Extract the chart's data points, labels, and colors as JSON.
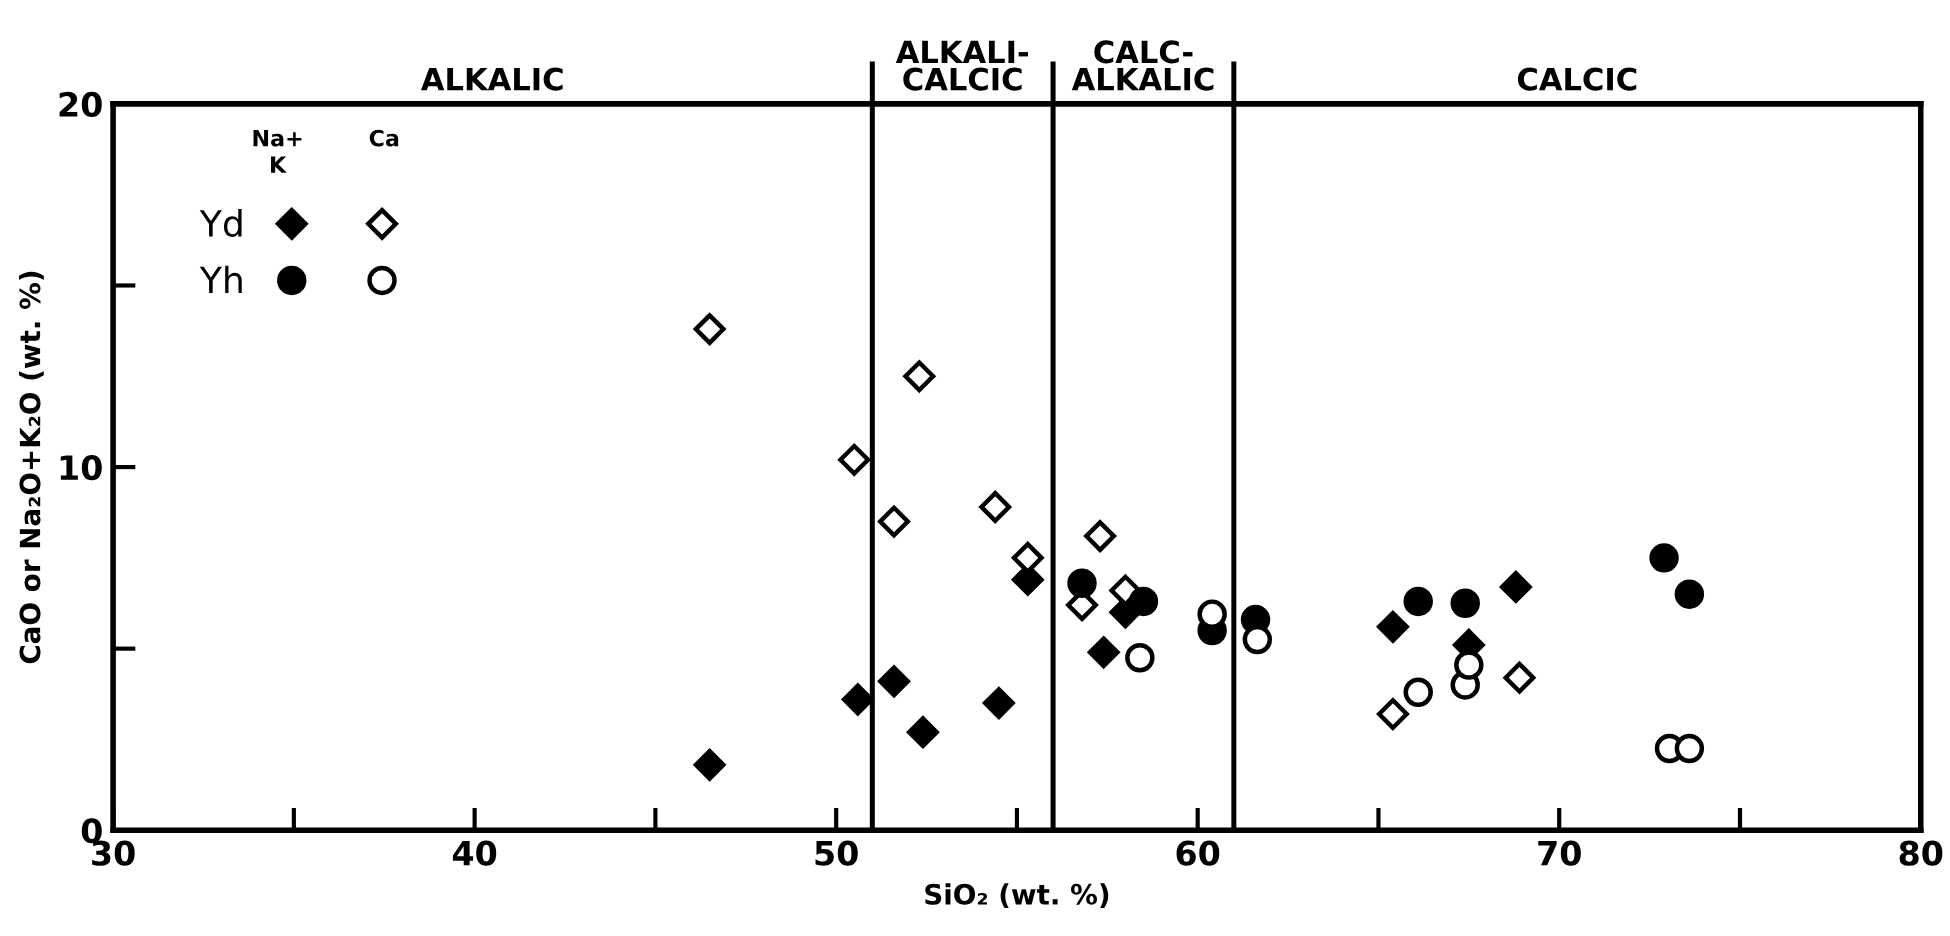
{
  "chart_data": {
    "type": "scatter",
    "xlabel": "SiO₂ (wt. %)",
    "ylabel": "CaO or Na₂O+K₂O (wt. %)",
    "xlim": [
      30,
      80
    ],
    "ylim": [
      0,
      20
    ],
    "xticks": [
      30,
      {
        "value": 35,
        "label": null
      },
      40,
      {
        "value": 45,
        "label": null
      },
      50,
      {
        "value": 55,
        "label": null
      },
      60,
      {
        "value": 65,
        "label": null
      },
      70,
      {
        "value": 75,
        "label": null
      },
      80
    ],
    "yticks": [
      0,
      {
        "value": 5,
        "label": null
      },
      10,
      {
        "value": 15,
        "label": null
      },
      20
    ],
    "grid": false,
    "legend": "top left",
    "series": [
      {
        "name": "Yd",
        "color": "#000000",
        "marker": "diamond",
        "x": [
          46.5,
          50.6,
          51.6,
          52.4,
          54.5,
          55.3,
          57.4,
          58.0,
          65.4,
          67.5,
          68.8
        ],
        "values": [
          1.8,
          3.6,
          4.1,
          2.7,
          3.5,
          6.9,
          4.9,
          6.0,
          5.6,
          5.1,
          6.7
        ]
      },
      {
        "color": "#ffffff",
        "marker": "diamond",
        "x": [
          46.5,
          50.5,
          51.6,
          52.3,
          54.4,
          55.3,
          56.8,
          57.3,
          58.0,
          65.4,
          68.9
        ],
        "values": [
          13.8,
          10.2,
          8.5,
          12.5,
          8.9,
          7.5,
          6.2,
          8.1,
          6.6,
          3.2,
          4.2
        ]
      },
      {
        "name": "Yh",
        "color": "#000000",
        "marker": "circle",
        "x": [
          56.8,
          58.5,
          60.4,
          61.6,
          66.1,
          67.4,
          72.9,
          73.6
        ],
        "values": [
          6.8,
          6.3,
          5.5,
          5.8,
          6.3,
          6.25,
          7.5,
          6.5
        ]
      },
      {
        "color": "#ffffff",
        "marker": "circle",
        "x": [
          58.4,
          60.4,
          61.65,
          66.1,
          67.4,
          67.5,
          73.05,
          73.6
        ],
        "values": [
          4.75,
          5.95,
          5.25,
          3.8,
          4.0,
          4.55,
          2.25,
          2.25
        ]
      }
    ],
    "ref_lines": [
      {
        "axis": "x",
        "value": 51,
        "color": "#000000"
      },
      {
        "axis": "x",
        "value": 56,
        "color": "#000000"
      },
      {
        "axis": "x",
        "value": 61,
        "color": "#000000"
      }
    ],
    "annotations": [
      "Na+\nK",
      "Ca",
      "ALKALIC",
      "ALKALI-\nCALCIC",
      "CALC-\nALKALIC",
      "CALCIC"
    ]
  }
}
